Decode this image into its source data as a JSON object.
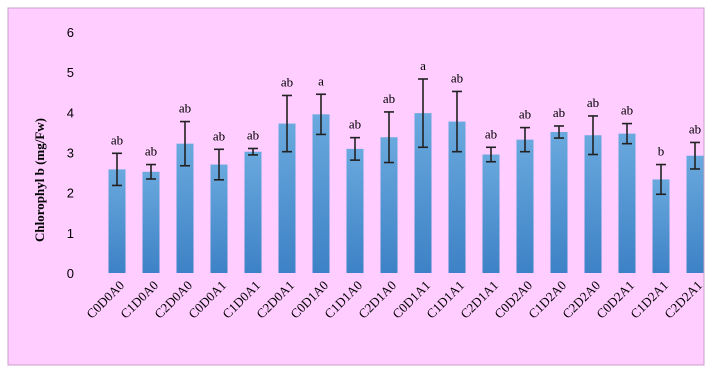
{
  "colors": {
    "background": "#ffcdff",
    "bar_top": "#6aa9de",
    "bar_bottom": "#3d82c6",
    "error_bar": "#222222",
    "frame": "#c8a0c8"
  },
  "chart_data": {
    "type": "bar",
    "ylabel": "Chlorophyl b (mg/Fw)",
    "ylim": [
      0,
      6
    ],
    "yticks": [
      "0",
      "1",
      "2",
      "3",
      "4",
      "5",
      "6"
    ],
    "grid": false,
    "categories": [
      "C0D0A0",
      "C1D0A0",
      "C2D0A0",
      "C0D0A1",
      "C1D0A1",
      "C2D0A1",
      "C0D1A0",
      "C1D1A0",
      "C2D1A0",
      "C0D1A1",
      "C1D1A1",
      "C2D1A1",
      "C0D2A0",
      "C1D2A0",
      "C2D2A0",
      "C0D2A1",
      "C1D2A1",
      "C2D2A1"
    ],
    "values": [
      2.58,
      2.52,
      3.22,
      2.7,
      3.02,
      3.72,
      3.95,
      3.09,
      3.38,
      3.98,
      3.77,
      2.95,
      3.32,
      3.51,
      3.43,
      3.47,
      2.33,
      2.92
    ],
    "errors": [
      0.4,
      0.18,
      0.55,
      0.38,
      0.08,
      0.7,
      0.5,
      0.28,
      0.63,
      0.85,
      0.75,
      0.18,
      0.3,
      0.15,
      0.48,
      0.25,
      0.37,
      0.33
    ],
    "labels": [
      "ab",
      "ab",
      "ab",
      "ab",
      "ab",
      "ab",
      "a",
      "ab",
      "ab",
      "a",
      "ab",
      "ab",
      "ab",
      "ab",
      "ab",
      "ab",
      "b",
      "ab"
    ]
  }
}
